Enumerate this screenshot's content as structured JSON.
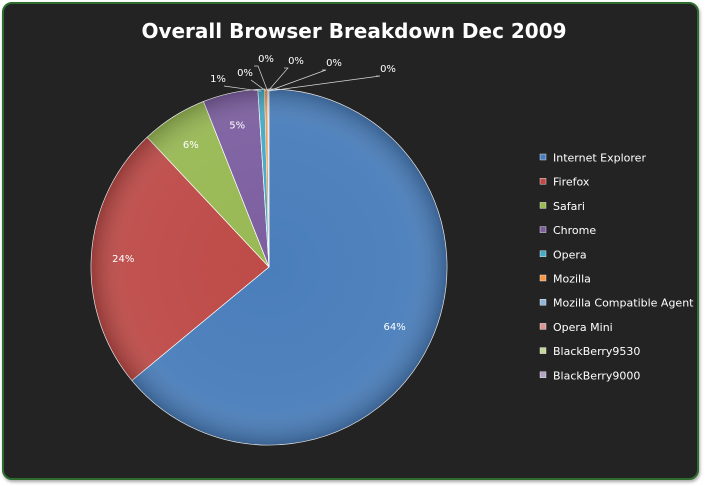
{
  "chart_data": {
    "type": "pie",
    "title": "Overall Browser Breakdown Dec 2009",
    "slices": [
      {
        "label": "Internet Explorer",
        "value": 64.0,
        "display": "64%",
        "color": "#4a7ebb"
      },
      {
        "label": "Firefox",
        "value": 24.0,
        "display": "24%",
        "color": "#be4b48"
      },
      {
        "label": "Safari",
        "value": 6.0,
        "display": "6%",
        "color": "#98b954"
      },
      {
        "label": "Chrome",
        "value": 5.0,
        "display": "5%",
        "color": "#7d5fa0"
      },
      {
        "label": "Opera",
        "value": 0.6,
        "display": "1%",
        "color": "#46aac5"
      },
      {
        "label": "Mozilla",
        "value": 0.25,
        "display": "0%",
        "color": "#f69545"
      },
      {
        "label": "Mozilla Compatible  Agent",
        "value": 0.05,
        "display": "0%",
        "color": "#8fb3d9"
      },
      {
        "label": "Opera Mini",
        "value": 0.04,
        "display": "0%",
        "color": "#d99694"
      },
      {
        "label": "BlackBerry9530",
        "value": 0.03,
        "display": "0%",
        "color": "#c3d69b"
      },
      {
        "label": "BlackBerry9000",
        "value": 0.03,
        "display": "0%",
        "color": "#b3a2c7"
      }
    ],
    "legend_position": "right"
  }
}
